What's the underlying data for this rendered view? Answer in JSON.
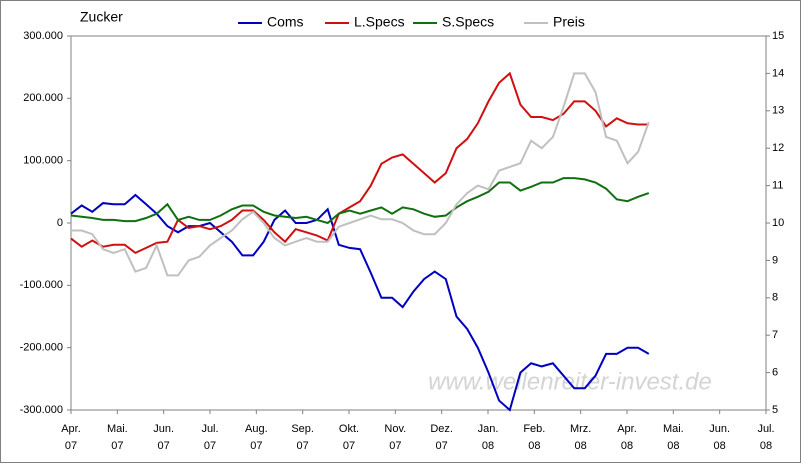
{
  "chart_data": {
    "type": "line",
    "title": "Zucker",
    "watermark": "www.wellenreiter-invest.de",
    "x": [
      0,
      0.23,
      0.46,
      0.69,
      0.92,
      1.16,
      1.39,
      1.62,
      1.85,
      2.08,
      2.31,
      2.54,
      2.77,
      3.0,
      3.23,
      3.47,
      3.7,
      3.93,
      4.16,
      4.39,
      4.62,
      4.85,
      5.08,
      5.31,
      5.54,
      5.78,
      6.01,
      6.24,
      6.47,
      6.7,
      6.93,
      7.16,
      7.39,
      7.62,
      7.85,
      8.09,
      8.32,
      8.55,
      8.78,
      9.01,
      9.24,
      9.47,
      9.7,
      9.93,
      10.16,
      10.4,
      10.63,
      10.86,
      11.09,
      11.32,
      11.55,
      11.78,
      12.01,
      12.24,
      12.47
    ],
    "xlim": [
      0,
      15
    ],
    "xticks": [
      {
        "value": 0,
        "label": "Apr.",
        "year": "07"
      },
      {
        "value": 1,
        "label": "Mai.",
        "year": "07"
      },
      {
        "value": 2,
        "label": "Jun.",
        "year": "07"
      },
      {
        "value": 3,
        "label": "Jul.",
        "year": "07"
      },
      {
        "value": 4,
        "label": "Aug.",
        "year": "07"
      },
      {
        "value": 5,
        "label": "Sep.",
        "year": "07"
      },
      {
        "value": 6,
        "label": "Okt.",
        "year": "07"
      },
      {
        "value": 7,
        "label": "Nov.",
        "year": "07"
      },
      {
        "value": 8,
        "label": "Dez.",
        "year": "07"
      },
      {
        "value": 9,
        "label": "Jan.",
        "year": "08"
      },
      {
        "value": 10,
        "label": "Feb.",
        "year": "08"
      },
      {
        "value": 11,
        "label": "Mrz.",
        "year": "08"
      },
      {
        "value": 12,
        "label": "Apr.",
        "year": "08"
      },
      {
        "value": 13,
        "label": "Mai.",
        "year": "08"
      },
      {
        "value": 14,
        "label": "Jun.",
        "year": "08"
      },
      {
        "value": 15,
        "label": "Jul.",
        "year": "08"
      }
    ],
    "ylim": [
      -300000,
      300000
    ],
    "yticks": [
      {
        "value": -300000,
        "label": "-300.000"
      },
      {
        "value": -200000,
        "label": "-200.000"
      },
      {
        "value": -100000,
        "label": "-100.000"
      },
      0,
      {
        "value": 100000,
        "label": "100.000"
      },
      {
        "value": 200000,
        "label": "200.000"
      },
      {
        "value": 300000,
        "label": "300.000"
      }
    ],
    "y2lim": [
      5,
      15
    ],
    "y2ticks": [
      5,
      6,
      7,
      8,
      9,
      10,
      11,
      12,
      13,
      14,
      15
    ],
    "series": [
      {
        "name": "Coms",
        "color": "#0000c0",
        "values": [
          15000,
          28000,
          18000,
          32000,
          30000,
          30000,
          45000,
          30000,
          15000,
          -5000,
          -15000,
          -5000,
          -5000,
          0,
          -15000,
          -30000,
          -52000,
          -52000,
          -30000,
          5000,
          20000,
          0,
          0,
          5000,
          22000,
          -35000,
          -40000,
          -42000,
          -80000,
          -120000,
          -120000,
          -135000,
          -110000,
          -90000,
          -78000,
          -90000,
          -150000,
          -170000,
          -200000,
          -240000,
          -285000,
          -300000,
          -240000,
          -225000,
          -230000,
          -225000,
          -245000,
          -265000,
          -265000,
          -245000,
          -210000,
          -210000,
          -200000,
          -200000,
          -210000
        ]
      },
      {
        "name": "L.Specs",
        "color": "#d01010",
        "values": [
          -25000,
          -38000,
          -28000,
          -38000,
          -35000,
          -35000,
          -48000,
          -40000,
          -32000,
          -30000,
          5000,
          -8000,
          -5000,
          -10000,
          -5000,
          5000,
          20000,
          20000,
          5000,
          -15000,
          -30000,
          -10000,
          -15000,
          -20000,
          -28000,
          15000,
          25000,
          35000,
          60000,
          95000,
          105000,
          110000,
          95000,
          80000,
          65000,
          80000,
          120000,
          135000,
          160000,
          195000,
          225000,
          240000,
          190000,
          170000,
          170000,
          165000,
          175000,
          195000,
          195000,
          180000,
          155000,
          168000,
          160000,
          158000,
          158000
        ]
      },
      {
        "name": "S.Specs",
        "color": "#107010",
        "values": [
          12000,
          10000,
          8000,
          5000,
          5000,
          3000,
          3000,
          8000,
          15000,
          30000,
          5000,
          10000,
          5000,
          5000,
          12000,
          22000,
          28000,
          28000,
          18000,
          12000,
          10000,
          8000,
          10000,
          5000,
          0,
          15000,
          20000,
          15000,
          20000,
          25000,
          15000,
          25000,
          22000,
          15000,
          10000,
          12000,
          25000,
          35000,
          42000,
          50000,
          65000,
          65000,
          52000,
          58000,
          65000,
          65000,
          72000,
          72000,
          70000,
          65000,
          55000,
          38000,
          35000,
          42000,
          48000
        ]
      },
      {
        "name": "Preis",
        "color": "#c0c0c0",
        "axis": "y2",
        "values": [
          9.8,
          9.8,
          9.7,
          9.3,
          9.2,
          9.3,
          8.7,
          8.8,
          9.4,
          8.6,
          8.6,
          9.0,
          9.1,
          9.4,
          9.6,
          9.8,
          10.1,
          10.3,
          10.0,
          9.6,
          9.4,
          9.5,
          9.6,
          9.5,
          9.5,
          9.9,
          10.0,
          10.1,
          10.2,
          10.1,
          10.1,
          10.0,
          9.8,
          9.7,
          9.7,
          10.0,
          10.5,
          10.8,
          11.0,
          10.9,
          11.4,
          11.5,
          11.6,
          12.2,
          12.0,
          12.3,
          13.1,
          14.0,
          14.0,
          13.5,
          12.3,
          12.2,
          11.6,
          11.9,
          12.7
        ]
      }
    ]
  }
}
